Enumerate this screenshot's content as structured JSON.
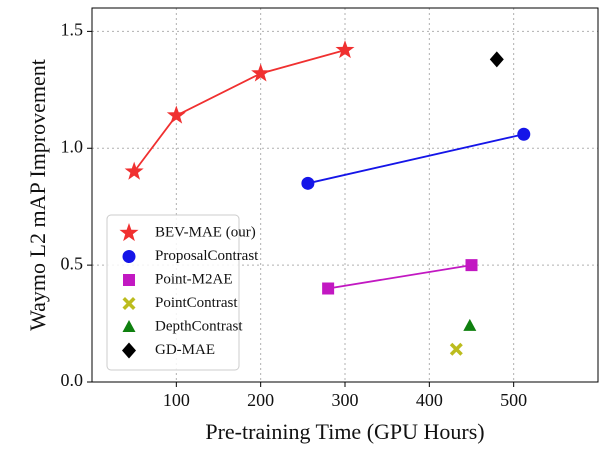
{
  "chart_data": {
    "type": "line",
    "xlabel": "Pre-training Time (GPU Hours)",
    "ylabel": "Waymo L2 mAP Improvement",
    "xlim": [
      0,
      600
    ],
    "xticks": [
      100,
      200,
      300,
      400,
      500
    ],
    "ylim": [
      0,
      1.6
    ],
    "yticks": [
      {
        "value": 0,
        "label": "0.0"
      },
      {
        "value": 0.5,
        "label": "0.5"
      },
      {
        "value": 1,
        "label": "1.0"
      },
      {
        "value": 1.5,
        "label": "1.5"
      }
    ],
    "grid": true,
    "legend": "lower left",
    "series": [
      {
        "name": "BEV-MAE (our)",
        "color": "#f03030",
        "marker": "star",
        "x": [
          50,
          100,
          200,
          300
        ],
        "values": [
          0.9,
          1.14,
          1.32,
          1.42
        ]
      },
      {
        "name": "ProposalContrast",
        "color": "#1515e8",
        "marker": "circle",
        "x": [
          256,
          512
        ],
        "values": [
          0.85,
          1.06
        ]
      },
      {
        "name": "Point-M2AE",
        "color": "#c218c2",
        "marker": "square",
        "x": [
          280,
          450
        ],
        "values": [
          0.4,
          0.5
        ]
      },
      {
        "name": "PointContrast",
        "color": "#bcbc1e",
        "marker": "x",
        "x": [
          432
        ],
        "values": [
          0.14
        ]
      },
      {
        "name": "DepthContrast",
        "color": "#0f800f",
        "marker": "triangle",
        "x": [
          448
        ],
        "values": [
          0.24
        ]
      },
      {
        "name": "GD-MAE",
        "color": "#000000",
        "marker": "diamond",
        "x": [
          480
        ],
        "values": [
          1.38
        ]
      }
    ]
  }
}
